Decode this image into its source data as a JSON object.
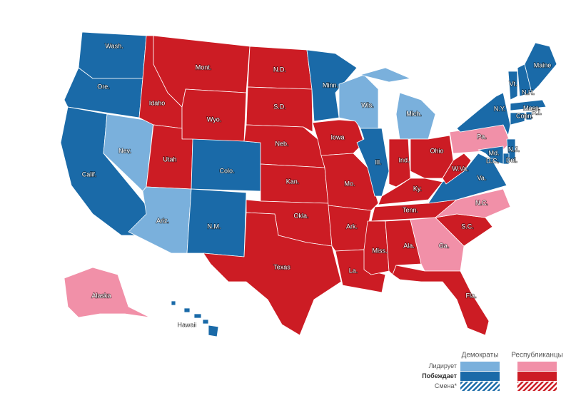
{
  "states": [
    {
      "label": "Wash.",
      "color": "#1a6aa8"
    },
    {
      "label": "Ore.",
      "color": "#1a6aa8"
    },
    {
      "label": "Calif.",
      "color": "#1a6aa8"
    },
    {
      "label": "Nev.",
      "color": "#7ab0dc"
    },
    {
      "label": "Idaho",
      "color": "#cc1c24"
    },
    {
      "label": "Mont.",
      "color": "#cc1c24"
    },
    {
      "label": "Wyo.",
      "color": "#cc1c24"
    },
    {
      "label": "Utah",
      "color": "#cc1c24"
    },
    {
      "label": "Colo.",
      "color": "#1a6aa8"
    },
    {
      "label": "Ariz.",
      "color": "#7ab0dc"
    },
    {
      "label": "N.M.",
      "color": "#1a6aa8"
    },
    {
      "label": "N.D.",
      "color": "#cc1c24"
    },
    {
      "label": "S.D.",
      "color": "#cc1c24"
    },
    {
      "label": "Neb.",
      "color": "#cc1c24"
    },
    {
      "label": "Kan.",
      "color": "#cc1c24"
    },
    {
      "label": "Okla.",
      "color": "#cc1c24"
    },
    {
      "label": "Texas",
      "color": "#cc1c24"
    },
    {
      "label": "Minn.",
      "color": "#1a6aa8"
    },
    {
      "label": "Iowa",
      "color": "#cc1c24"
    },
    {
      "label": "Mo.",
      "color": "#cc1c24"
    },
    {
      "label": "Ark.",
      "color": "#cc1c24"
    },
    {
      "label": "La.",
      "color": "#cc1c24"
    },
    {
      "label": "Wis.",
      "color": "#7ab0dc"
    },
    {
      "label": "Ill.",
      "color": "#1a6aa8"
    },
    {
      "label": "Mich.",
      "color": "#7ab0dc"
    },
    {
      "label": "Ind.",
      "color": "#cc1c24"
    },
    {
      "label": "Ohio",
      "color": "#cc1c24"
    },
    {
      "label": "Ky.",
      "color": "#cc1c24"
    },
    {
      "label": "Tenn.",
      "color": "#cc1c24"
    },
    {
      "label": "Miss.",
      "color": "#cc1c24"
    },
    {
      "label": "Ala.",
      "color": "#cc1c24"
    },
    {
      "label": "Ga.",
      "color": "#f190a8"
    },
    {
      "label": "Fla.",
      "color": "#cc1c24"
    },
    {
      "label": "S.C.",
      "color": "#cc1c24"
    },
    {
      "label": "N.C.",
      "color": "#f190a8"
    },
    {
      "label": "Va.",
      "color": "#1a6aa8"
    },
    {
      "label": "W.Va.",
      "color": "#cc1c24"
    },
    {
      "label": "Pa.",
      "color": "#f190a8"
    },
    {
      "label": "N.Y.",
      "color": "#1a6aa8"
    },
    {
      "label": "Vt.",
      "color": "#1a6aa8"
    },
    {
      "label": "N.H.",
      "color": "#1a6aa8"
    },
    {
      "label": "Maine",
      "color": "#1a6aa8"
    },
    {
      "label": "Mass.",
      "color": "#1a6aa8"
    },
    {
      "label": "Conn.",
      "color": "#1a6aa8"
    },
    {
      "label": "R.I.",
      "color": "#1a6aa8"
    },
    {
      "label": "N.J.",
      "color": "#1a6aa8"
    },
    {
      "label": "Del.",
      "color": "#1a6aa8"
    },
    {
      "label": "Md.",
      "color": "#1a6aa8"
    },
    {
      "label": "D.C.",
      "color": "#1a6aa8"
    },
    {
      "label": "Alaska",
      "color": "#f190a8"
    },
    {
      "label": "Hawaii",
      "color": "#1a6aa8"
    }
  ],
  "legend": {
    "parties": [
      {
        "name": "Демократы",
        "lead_color": "#7ab0dc",
        "win_color": "#1a6aa8"
      },
      {
        "name": "Республиканцы",
        "lead_color": "#f190a8",
        "win_color": "#cc1c24"
      }
    ],
    "rows": [
      "Лидирует",
      "Побеждает",
      "Смена*"
    ]
  }
}
